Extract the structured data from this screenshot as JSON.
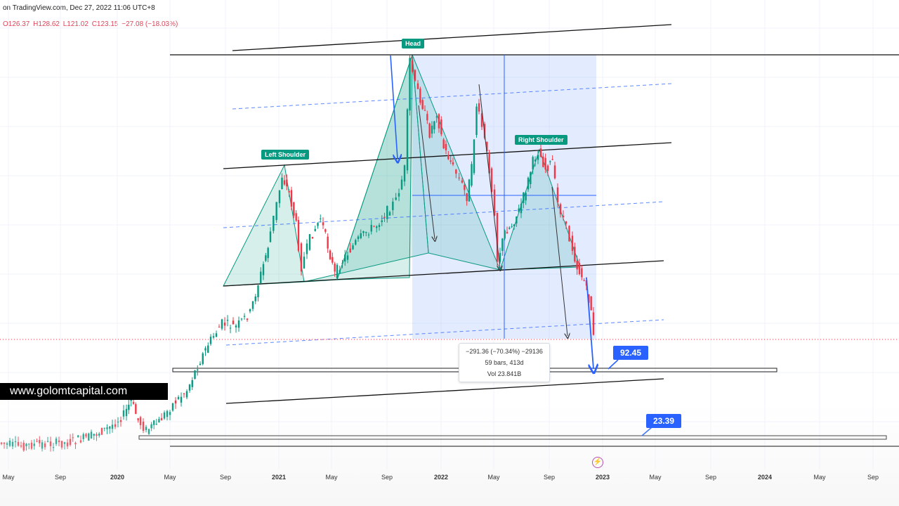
{
  "header": {
    "source_text": "on TradingView.com, Dec 27, 2022 11:06 UTC+8"
  },
  "ohlc": {
    "open": "O126.37",
    "high": "H128.62",
    "low": "L121.02",
    "close": "C123.15",
    "change": "−27.08 (−18.03%)"
  },
  "site_banner": "www.golomtcapital.com",
  "pattern_labels": {
    "head": "Head",
    "left_shoulder": "Left Shoulder",
    "right_shoulder": "Right Shoulder"
  },
  "price_labels": {
    "target_1": "92.45",
    "target_2": "23.39"
  },
  "measure": {
    "line1": "−291.36 (−70.34%) −29136",
    "line2": "59 bars, 413d",
    "line3": "Vol 23.841B"
  },
  "colors": {
    "up": "#089981",
    "down": "#f23645",
    "pattern_fill": "#089981",
    "range_fill": "#2962ff",
    "label_bg": "#089981",
    "price_label_bg": "#2962ff",
    "banner_bg": "#000000"
  },
  "chart_data": {
    "type": "candlestick",
    "x_axis_ticks": [
      "May",
      "Sep",
      "2020",
      "May",
      "Sep",
      "2021",
      "May",
      "Sep",
      "2022",
      "May",
      "Sep",
      "2023",
      "May",
      "Sep",
      "2024",
      "May",
      "Sep"
    ],
    "last_close": 123.15,
    "price_levels": [
      92.45,
      23.39
    ],
    "pattern": "head-and-shoulders",
    "measured_move": {
      "change": -291.36,
      "percent": -70.34,
      "bars": 59,
      "days": 413,
      "volume": "23.841B"
    },
    "grid": true
  }
}
